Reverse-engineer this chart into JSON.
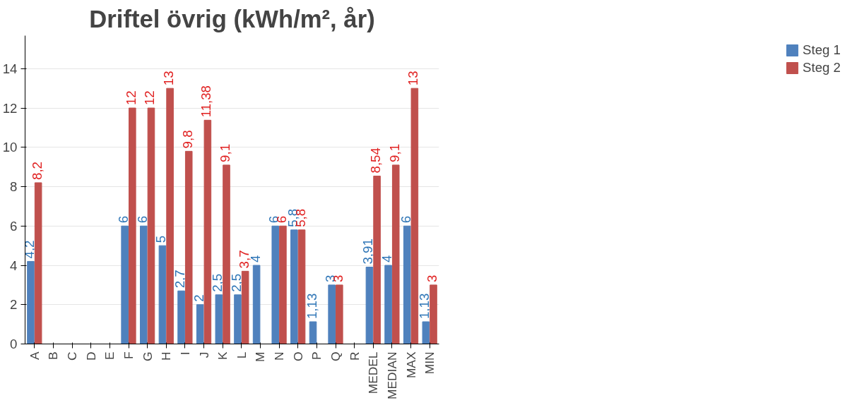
{
  "chart_data": {
    "type": "bar",
    "title": "Driftel övrig (kWh/m², år)",
    "categories": [
      "A",
      "B",
      "C",
      "D",
      "E",
      "F",
      "G",
      "H",
      "I",
      "J",
      "K",
      "L",
      "M",
      "N",
      "O",
      "P",
      "Q",
      "R",
      "MEDEL",
      "MEDIAN",
      "MAX",
      "MIN"
    ],
    "series": [
      {
        "name": "Steg 1",
        "color": "#4f81bd",
        "values": [
          4.2,
          null,
          null,
          null,
          null,
          6,
          6,
          5,
          2.7,
          2,
          2.5,
          2.5,
          4,
          6,
          5.8,
          1.13,
          3,
          null,
          3.91,
          4,
          6,
          1.13
        ],
        "value_labels": [
          "4,2",
          null,
          null,
          null,
          null,
          "6",
          "6",
          "5",
          "2,7",
          "2",
          "2,5",
          "2,5",
          "4",
          "6",
          "5,8",
          "1,13",
          "3",
          null,
          "3,91",
          "4",
          "6",
          "1,13"
        ]
      },
      {
        "name": "Steg 2",
        "color": "#c0504d",
        "values": [
          8.2,
          null,
          null,
          null,
          null,
          12,
          12,
          13,
          9.8,
          11.38,
          9.1,
          3.7,
          null,
          6,
          5.8,
          null,
          3,
          null,
          8.54,
          9.1,
          13,
          3
        ],
        "value_labels": [
          "8,2",
          null,
          null,
          null,
          null,
          "12",
          "12",
          "13",
          "9,8",
          "11,38",
          "9,1",
          "3,7",
          null,
          "6",
          "5,8",
          null,
          "3",
          null,
          "8,54",
          "9,1",
          "13",
          "3"
        ]
      }
    ],
    "ylim": [
      0,
      14
    ],
    "yticks": [
      0,
      2,
      4,
      6,
      8,
      10,
      12,
      14
    ],
    "grid": "y",
    "legend": "right"
  }
}
